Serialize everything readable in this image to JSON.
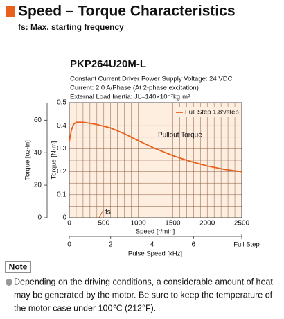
{
  "header": {
    "title": "Speed – Torque Characteristics",
    "subtitle": "fs: Max. starting frequency",
    "model": "PKP264U20M-L"
  },
  "info": [
    "Constant Current Driver   Power Supply Voltage: 24 VDC",
    "Current: 2.0 A/Phase (At 2-phase excitation)",
    "External Load Inertia: JL=140×10⁻⁷kg·m²"
  ],
  "chart_data": {
    "type": "line",
    "x": [
      0,
      30,
      60,
      100,
      200,
      400,
      600,
      800,
      1000,
      1250,
      1500,
      1750,
      2000,
      2250,
      2500
    ],
    "series": [
      {
        "name": "Full Step 1.8°/step",
        "color": "#e8601c",
        "values": [
          0.33,
          0.38,
          0.405,
          0.415,
          0.415,
          0.405,
          0.39,
          0.365,
          0.335,
          0.3,
          0.27,
          0.245,
          0.225,
          0.21,
          0.2
        ]
      }
    ],
    "xlim": [
      0,
      2500
    ],
    "xticks": [
      0,
      500,
      1000,
      1500,
      2000,
      2500
    ],
    "xlabel": "Speed [r/min]",
    "ylim": [
      0,
      0.5
    ],
    "yticks": [
      0,
      0.1,
      0.2,
      0.3,
      0.4,
      0.5
    ],
    "ylabel": "Torque [N·m]",
    "y2lim": [
      0,
      70.8
    ],
    "y2ticks": [
      0,
      20,
      40,
      60
    ],
    "y2label": "Torque [oz-in]",
    "x2lim": [
      0,
      8.333
    ],
    "x2ticks": [
      0,
      2,
      4,
      6
    ],
    "x2label": "Pulse Speed [kHz]",
    "x2_end_label": "Full Step",
    "annotations": [
      "Pullout Torque",
      "fs"
    ],
    "grid": true,
    "legend": "upper right"
  },
  "note": {
    "label": "Note",
    "lines": [
      "Depending on the driving conditions, a considerable amount of heat",
      "may be generated by the motor. Be sure to keep the temperature of",
      "the motor case under 100℃ (212°F)."
    ]
  }
}
